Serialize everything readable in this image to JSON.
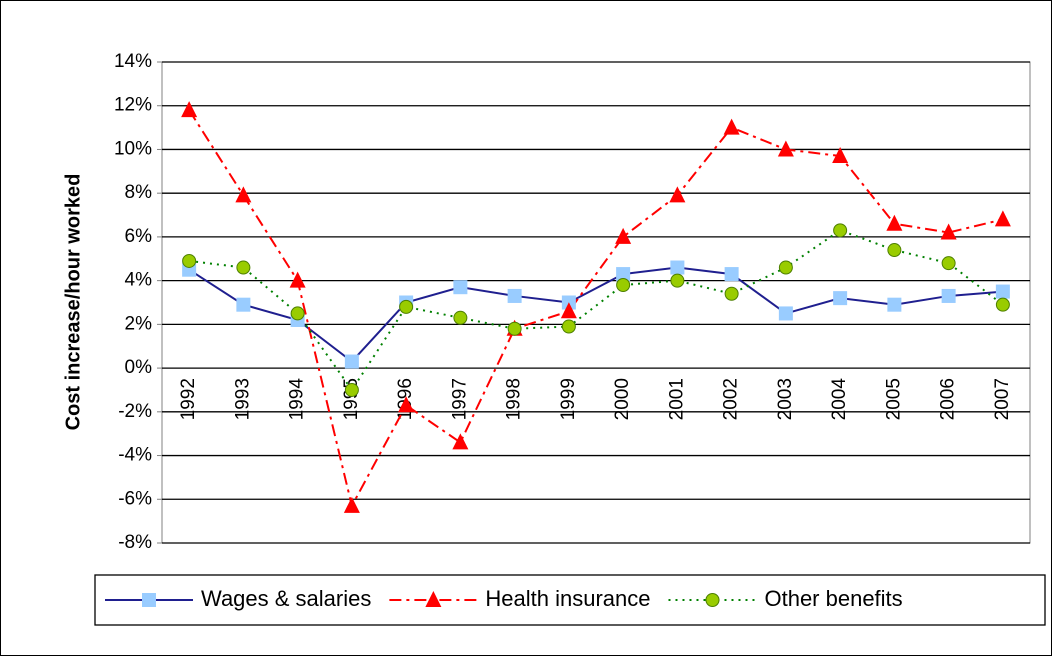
{
  "chart_data": {
    "type": "line",
    "y_axis_label": "Cost increase/hour worked",
    "categories": [
      "1992",
      "1993",
      "1994",
      "1995",
      "1996",
      "1997",
      "1998",
      "1999",
      "2000",
      "2001",
      "2002",
      "2003",
      "2004",
      "2005",
      "2006",
      "2007"
    ],
    "series": [
      {
        "name": "Wages & salaries",
        "color": "#1f1f8f",
        "marker_color": "#99ccff",
        "marker": "square",
        "line_style": "solid",
        "values": [
          4.5,
          2.9,
          2.2,
          0.3,
          3.0,
          3.7,
          3.3,
          3.0,
          4.3,
          4.6,
          4.3,
          2.5,
          3.2,
          2.9,
          3.3,
          3.5
        ]
      },
      {
        "name": "Health insurance",
        "color": "#ff0000",
        "marker_color": "#ff0000",
        "marker": "triangle",
        "line_style": "dashdot",
        "values": [
          11.8,
          7.9,
          4.0,
          -6.3,
          -1.7,
          -3.4,
          1.8,
          2.6,
          6.0,
          7.9,
          11.0,
          10.0,
          9.7,
          6.6,
          6.2,
          6.8
        ]
      },
      {
        "name": "Other benefits",
        "color": "#008000",
        "marker_color": "#99cc00",
        "marker": "circle",
        "line_style": "dotted",
        "values": [
          4.9,
          4.6,
          2.5,
          -1.0,
          2.8,
          2.3,
          1.8,
          1.9,
          3.8,
          4.0,
          3.4,
          4.6,
          6.3,
          5.4,
          4.8,
          2.9
        ]
      }
    ],
    "ylim": [
      -8,
      14
    ],
    "yticks": [
      {
        "value": -8,
        "label": "-8%"
      },
      {
        "value": -6,
        "label": "-6%"
      },
      {
        "value": -4,
        "label": "-4%"
      },
      {
        "value": -2,
        "label": "-2%"
      },
      {
        "value": 0,
        "label": "0%"
      },
      {
        "value": 2,
        "label": "2%"
      },
      {
        "value": 4,
        "label": "4%"
      },
      {
        "value": 6,
        "label": "6%"
      },
      {
        "value": 8,
        "label": "8%"
      },
      {
        "value": 10,
        "label": "10%"
      },
      {
        "value": 12,
        "label": "12%"
      },
      {
        "value": 14,
        "label": "14%"
      }
    ],
    "grid": true,
    "legend": "bottom"
  }
}
